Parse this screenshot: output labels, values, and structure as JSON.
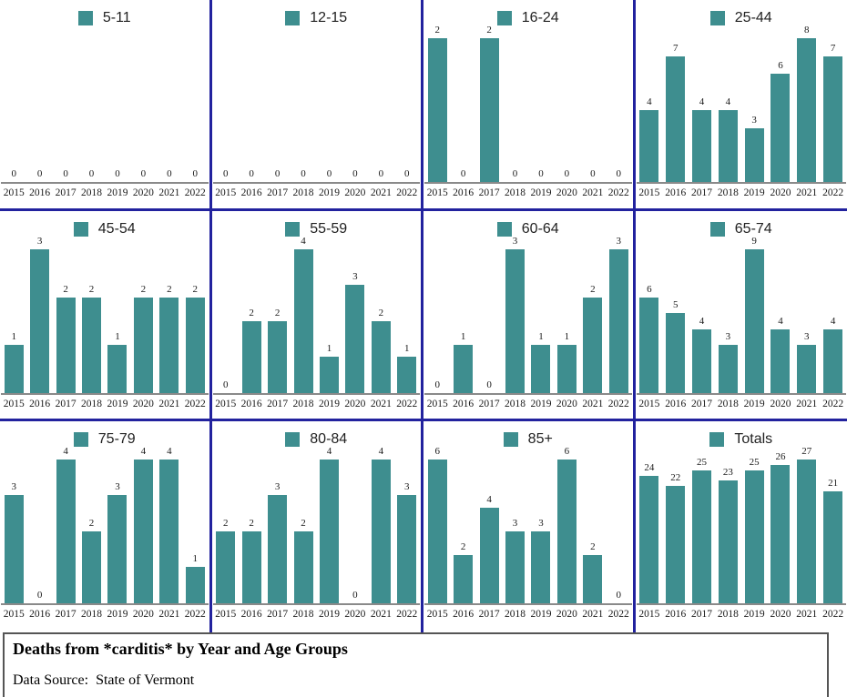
{
  "colors": {
    "bar": "#3E8E8F",
    "divider": "#22229E",
    "axis_line": "#8a8a8a",
    "text": "#1a1a1a"
  },
  "chart_data": {
    "type": "bar",
    "layout": "small-multiples-4x3",
    "title": "Deaths from *carditis* by Year and Age Groups",
    "source_note": "Data Source:  State of Vermont",
    "value_labels": true,
    "independent_y_scale_per_panel": true,
    "grid": false,
    "legend_position": "top-center-of-each-panel",
    "categories": [
      "2015",
      "2016",
      "2017",
      "2018",
      "2019",
      "2020",
      "2021",
      "2022"
    ],
    "panels": [
      {
        "label": "5-11",
        "values": [
          0,
          0,
          0,
          0,
          0,
          0,
          0,
          0
        ]
      },
      {
        "label": "12-15",
        "values": [
          0,
          0,
          0,
          0,
          0,
          0,
          0,
          0
        ]
      },
      {
        "label": "16-24",
        "values": [
          2,
          0,
          2,
          0,
          0,
          0,
          0,
          0
        ]
      },
      {
        "label": "25-44",
        "values": [
          4,
          7,
          4,
          4,
          3,
          6,
          8,
          7
        ]
      },
      {
        "label": "45-54",
        "values": [
          1,
          3,
          2,
          2,
          1,
          2,
          2,
          2
        ]
      },
      {
        "label": "55-59",
        "values": [
          0,
          2,
          2,
          4,
          1,
          3,
          2,
          1
        ]
      },
      {
        "label": "60-64",
        "values": [
          0,
          1,
          0,
          3,
          1,
          1,
          2,
          3
        ]
      },
      {
        "label": "65-74",
        "values": [
          6,
          5,
          4,
          3,
          9,
          4,
          3,
          4
        ]
      },
      {
        "label": "75-79",
        "values": [
          3,
          0,
          4,
          2,
          3,
          4,
          4,
          1
        ]
      },
      {
        "label": "80-84",
        "values": [
          2,
          2,
          3,
          2,
          4,
          0,
          4,
          3
        ]
      },
      {
        "label": "85+",
        "values": [
          6,
          2,
          4,
          3,
          3,
          6,
          2,
          0
        ]
      },
      {
        "label": "Totals",
        "values": [
          24,
          22,
          25,
          23,
          25,
          26,
          27,
          21
        ]
      }
    ]
  }
}
